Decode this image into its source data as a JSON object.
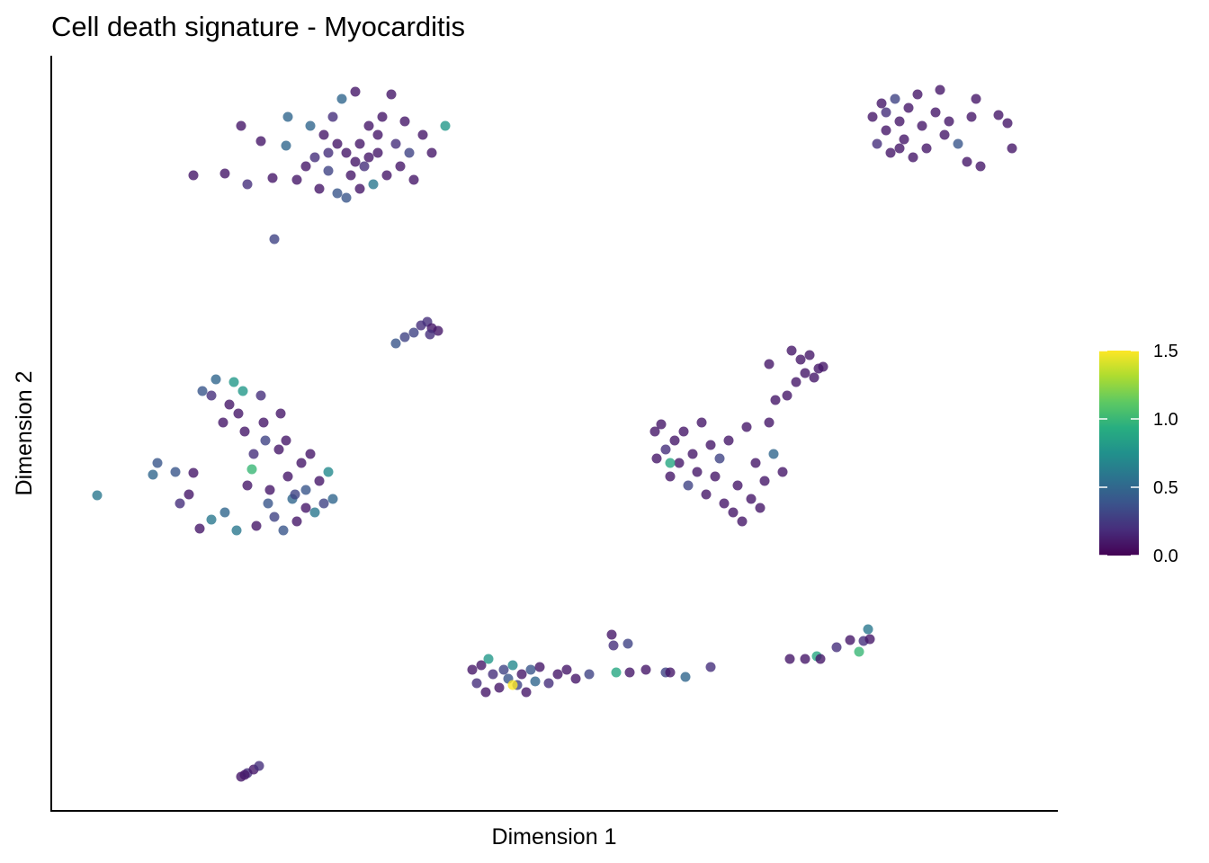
{
  "chart_data": {
    "type": "scatter",
    "title": "Cell death signature - Myocarditis",
    "xlabel": "Dimension 1",
    "ylabel": "Dimension 2",
    "xlim": [
      0,
      1118
    ],
    "ylim": [
      0,
      840
    ],
    "x": [
      158,
      193,
      211,
      218,
      233,
      246,
      248,
      261,
      263,
      273,
      288,
      293,
      298,
      303,
      308,
      313,
      318,
      323,
      328,
      333,
      338,
      343,
      348,
      353,
      358,
      363,
      368,
      373,
      378,
      383,
      388,
      393,
      398,
      403,
      413,
      423,
      438,
      343,
      328,
      353,
      308,
      283,
      363,
      338,
      318,
      913,
      918,
      923,
      928,
      933,
      938,
      943,
      948,
      953,
      958,
      963,
      968,
      973,
      983,
      988,
      993,
      998,
      1008,
      1018,
      1023,
      1028,
      1033,
      1053,
      1068,
      1063,
      943,
      928,
      383,
      393,
      403,
      411,
      418,
      423,
      430,
      421,
      51,
      113,
      118,
      138,
      143,
      153,
      158,
      165,
      168,
      178,
      183,
      178,
      191,
      193,
      198,
      203,
      206,
      208,
      213,
      215,
      218,
      223,
      225,
      228,
      233,
      236,
      238,
      241,
      243,
      248,
      253,
      255,
      258,
      263,
      268,
      273,
      278,
      283,
      288,
      293,
      298,
      303,
      308,
      313,
      261,
      271,
      283,
      671,
      673,
      678,
      683,
      688,
      693,
      698,
      703,
      708,
      713,
      718,
      723,
      728,
      733,
      738,
      743,
      748,
      753,
      758,
      763,
      768,
      773,
      778,
      783,
      788,
      793,
      798,
      803,
      805,
      813,
      798,
      818,
      823,
      828,
      833,
      838,
      843,
      848,
      853,
      858,
      688,
      468,
      473,
      478,
      483,
      486,
      491,
      498,
      503,
      508,
      513,
      518,
      523,
      528,
      533,
      538,
      543,
      553,
      563,
      573,
      583,
      598,
      623,
      625,
      628,
      641,
      643,
      661,
      683,
      688,
      705,
      733,
      821,
      838,
      851,
      855,
      873,
      888,
      898,
      903,
      908,
      910,
      513,
      211,
      218,
      225,
      231,
      215
    ],
    "y": [
      707,
      709,
      762,
      697,
      745,
      704,
      636,
      740,
      772,
      702,
      762,
      727,
      692,
      752,
      712,
      772,
      687,
      792,
      732,
      707,
      800,
      742,
      717,
      762,
      697,
      732,
      772,
      707,
      797,
      742,
      717,
      767,
      732,
      702,
      752,
      732,
      762,
      692,
      682,
      727,
      732,
      717,
      752,
      722,
      742,
      772,
      742,
      787,
      757,
      732,
      792,
      767,
      747,
      782,
      727,
      797,
      762,
      737,
      777,
      802,
      752,
      767,
      742,
      722,
      772,
      792,
      717,
      774,
      737,
      765,
      737,
      777,
      520,
      527,
      532,
      540,
      544,
      537,
      534,
      530,
      351,
      374,
      387,
      377,
      342,
      352,
      376,
      314,
      467,
      462,
      480,
      324,
      432,
      332,
      452,
      477,
      312,
      442,
      467,
      422,
      362,
      380,
      397,
      317,
      462,
      432,
      412,
      342,
      357,
      327,
      402,
      442,
      312,
      372,
      347,
      322,
      387,
      357,
      397,
      332,
      367,
      342,
      377,
      347,
      412,
      352,
      337,
      422,
      392,
      430,
      402,
      372,
      412,
      387,
      422,
      362,
      397,
      377,
      432,
      352,
      407,
      372,
      392,
      342,
      412,
      332,
      362,
      322,
      427,
      347,
      387,
      337,
      367,
      432,
      397,
      457,
      377,
      497,
      462,
      512,
      477,
      502,
      487,
      507,
      482,
      492,
      494,
      387,
      157,
      142,
      162,
      132,
      169,
      152,
      137,
      157,
      147,
      162,
      140,
      152,
      132,
      157,
      144,
      160,
      142,
      152,
      157,
      147,
      152,
      196,
      184,
      154,
      186,
      154,
      157,
      154,
      154,
      149,
      160,
      169,
      169,
      172,
      169,
      182,
      190,
      177,
      189,
      202,
      191,
      140,
      38,
      42,
      46,
      50,
      40
    ],
    "values": [
      0.1,
      0.1,
      0.1,
      0.2,
      0.1,
      0.1,
      0.3,
      0.5,
      0.5,
      0.1,
      0.5,
      0.2,
      0.1,
      0.1,
      0.3,
      0.2,
      0.4,
      0.5,
      0.1,
      0.1,
      0.1,
      0.1,
      0.2,
      0.1,
      0.6,
      0.1,
      0.1,
      0.1,
      0.1,
      0.2,
      0.1,
      0.1,
      0.3,
      0.1,
      0.1,
      0.1,
      0.8,
      0.1,
      0.4,
      0.1,
      0.2,
      0.1,
      0.1,
      0.1,
      0.1,
      0.1,
      0.2,
      0.1,
      0.1,
      0.1,
      0.3,
      0.1,
      0.1,
      0.1,
      0.1,
      0.1,
      0.1,
      0.1,
      0.1,
      0.1,
      0.1,
      0.1,
      0.4,
      0.1,
      0.1,
      0.1,
      0.1,
      0.1,
      0.1,
      0.1,
      0.1,
      0.2,
      0.4,
      0.3,
      0.3,
      0.2,
      0.2,
      0.1,
      0.1,
      0.2,
      0.6,
      0.5,
      0.4,
      0.4,
      0.2,
      0.1,
      0.1,
      0.1,
      0.4,
      0.2,
      0.5,
      0.6,
      0.1,
      0.5,
      0.1,
      0.8,
      0.6,
      0.1,
      0.8,
      0.1,
      0.1,
      1.0,
      0.2,
      0.1,
      0.2,
      0.1,
      0.3,
      0.4,
      0.1,
      0.3,
      0.1,
      0.1,
      0.4,
      0.1,
      0.5,
      0.1,
      0.1,
      0.4,
      0.1,
      0.6,
      0.1,
      0.3,
      0.7,
      0.5,
      0.1,
      0.3,
      0.1,
      0.1,
      0.1,
      0.1,
      0.2,
      0.1,
      0.1,
      0.1,
      0.1,
      0.3,
      0.1,
      0.1,
      0.1,
      0.1,
      0.1,
      0.1,
      0.3,
      0.1,
      0.1,
      0.1,
      0.1,
      0.1,
      0.1,
      0.1,
      0.1,
      0.1,
      0.1,
      0.1,
      0.5,
      0.1,
      0.1,
      0.1,
      0.1,
      0.1,
      0.1,
      0.1,
      0.1,
      0.1,
      0.1,
      0.1,
      0.1,
      0.9,
      0.1,
      0.2,
      0.1,
      0.1,
      0.8,
      0.2,
      0.1,
      0.3,
      0.4,
      0.7,
      0.3,
      0.1,
      0.1,
      0.4,
      0.5,
      0.1,
      0.2,
      0.1,
      0.1,
      0.1,
      0.3,
      0.1,
      0.2,
      0.9,
      0.3,
      0.1,
      0.1,
      0.3,
      0.1,
      0.5,
      0.2,
      0.1,
      0.1,
      0.9,
      0.1,
      0.2,
      0.1,
      1.0,
      0.2,
      0.6,
      0.1,
      1.5,
      0.1,
      0.2,
      0.1,
      0.2,
      0.1
    ],
    "colorbar": {
      "lim": [
        0,
        1.5
      ],
      "ticks": [
        {
          "value": 0,
          "label": "0.0"
        },
        {
          "value": 0.5,
          "label": "0.5"
        },
        {
          "value": 1,
          "label": "1.0"
        },
        {
          "value": 1.5,
          "label": "1.5"
        }
      ]
    },
    "colormap": [
      "#440154",
      "#472d7b",
      "#3b528b",
      "#2c728e",
      "#21918c",
      "#28ae80",
      "#5ec962",
      "#addc30",
      "#fde725"
    ]
  }
}
